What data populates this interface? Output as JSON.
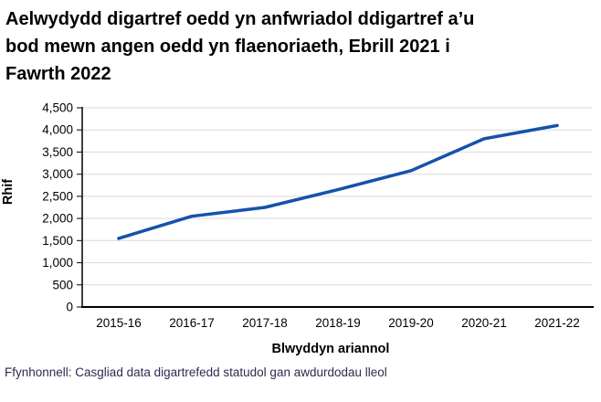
{
  "header": {
    "title": "Aelwydydd digartref oedd yn anfwriadol ddigartref a’u bod mewn angen oedd yn flaenoriaeth, Ebrill 2021 i Fawrth 2022",
    "title_lines": [
      "Aelwydydd digartref oedd yn anfwriadol ddigartref a’u",
      "bod mewn angen oedd yn flaenoriaeth, Ebrill 2021 i",
      "Fawrth 2022"
    ]
  },
  "chart_data": {
    "type": "line",
    "title": "Aelwydydd digartref oedd yn anfwriadol ddigartref a’u bod mewn angen oedd yn flaenoriaeth, Ebrill 2021 i Fawrth 2022",
    "categories": [
      "2015-16",
      "2016-17",
      "2017-18",
      "2018-19",
      "2019-20",
      "2020-21",
      "2021-22"
    ],
    "values": [
      1550,
      2050,
      2250,
      2650,
      3080,
      3800,
      4100
    ],
    "xlabel": "Blwyddyn ariannol",
    "ylabel": "Rhif",
    "ylim": [
      0,
      4500
    ],
    "ytick_step": 500,
    "ytick_labels": [
      "0",
      "500",
      "1,000",
      "1,500",
      "2,000",
      "2,500",
      "3,000",
      "3,500",
      "4,000",
      "4,500"
    ],
    "grid": true,
    "legend_position": "none",
    "line_color": "#1552ac",
    "grid_color": "#d9d9d9",
    "axis_color": "#000000"
  },
  "footer": {
    "source": "Ffynhonnell: Casgliad data digartrefedd statudol gan awdurdodau lleol",
    "source_color": "#2b2b52"
  }
}
